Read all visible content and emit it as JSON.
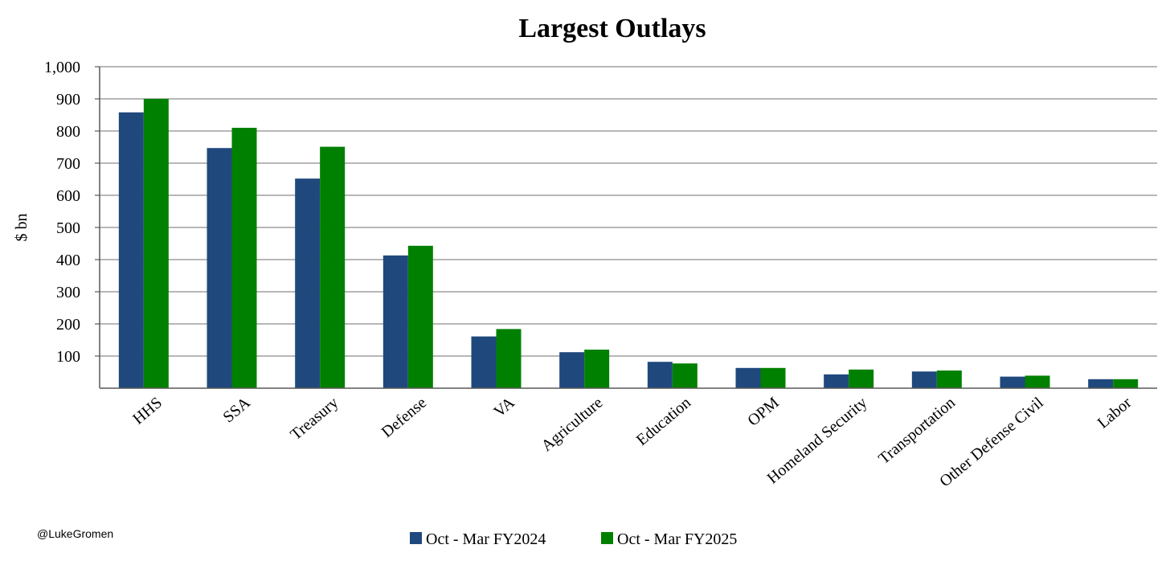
{
  "credit": "@LukeGromen",
  "colors": {
    "series1": "#1F497D",
    "series2": "#008000",
    "grid": "#8C8C8C",
    "axis": "#595959"
  },
  "chart_data": {
    "type": "bar",
    "title": "Largest Outlays",
    "xlabel": "",
    "ylabel": "$ bn",
    "ylim": [
      0,
      1000
    ],
    "yticks": [
      100,
      200,
      300,
      400,
      500,
      600,
      700,
      800,
      900,
      1000
    ],
    "ytick_labels": [
      "100",
      "200",
      "300",
      "400",
      "500",
      "600",
      "700",
      "800",
      "900",
      "1,000"
    ],
    "grid": true,
    "legend_position": "bottom",
    "categories": [
      "HHS",
      "SSA",
      "Treasury",
      "Defense",
      "VA",
      "Agriculture",
      "Education",
      "OPM",
      "Homeland Security",
      "Transportation",
      "Other Defense Civil",
      "Labor"
    ],
    "series": [
      {
        "name": "Oct - Mar FY2024",
        "values": [
          858,
          747,
          652,
          413,
          161,
          112,
          82,
          63,
          43,
          52,
          36,
          28
        ]
      },
      {
        "name": "Oct - Mar FY2025",
        "values": [
          900,
          810,
          751,
          443,
          184,
          120,
          77,
          63,
          58,
          55,
          39,
          28
        ]
      }
    ]
  }
}
